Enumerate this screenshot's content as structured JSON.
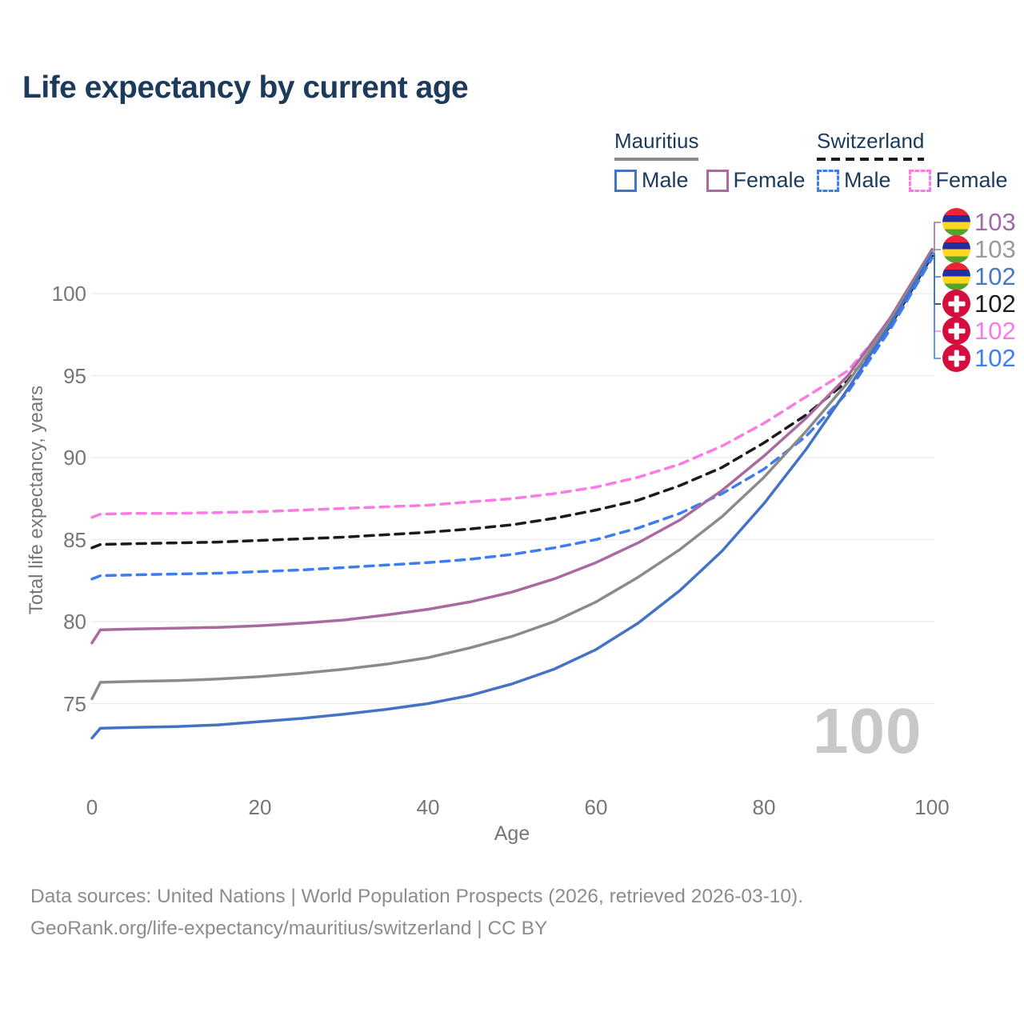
{
  "title": "Life expectancy by current age",
  "colors": {
    "title_navy": "#1b3a5c",
    "axis_text": "#767676",
    "gridline": "#ebebeb",
    "watermark": "#c8c8c8",
    "footer_text": "#8c8c8c"
  },
  "legend": {
    "groups": [
      {
        "name": "Mauritius",
        "underline_style": "solid",
        "underline_color": "#8a8a8a",
        "items": [
          {
            "label": "Male",
            "color": "#4472c4",
            "dashed": false
          },
          {
            "label": "Female",
            "color": "#a96b9f",
            "dashed": false
          }
        ]
      },
      {
        "name": "Switzerland",
        "underline_style": "dashed",
        "underline_color": "#1b1b1b",
        "items": [
          {
            "label": "Male",
            "color": "#3e7df1",
            "dashed": true
          },
          {
            "label": "Female",
            "color": "#fb7ae3",
            "dashed": true
          }
        ]
      }
    ]
  },
  "chart_data": {
    "type": "line",
    "title": "Life expectancy by current age",
    "xlabel": "Age",
    "ylabel": "Total life expectancy, years",
    "x_ticks": [
      0,
      20,
      40,
      60,
      80,
      100
    ],
    "y_ticks": [
      100,
      95,
      90,
      85,
      80,
      75
    ],
    "xlim": [
      0,
      100
    ],
    "ylim": [
      72,
      103.5
    ],
    "grid": "horizontal",
    "x": [
      0,
      1,
      5,
      10,
      15,
      20,
      25,
      30,
      35,
      40,
      45,
      50,
      55,
      60,
      65,
      70,
      75,
      80,
      85,
      90,
      95,
      100
    ],
    "series": [
      {
        "name": "Switzerland Female",
        "country": "Switzerland",
        "sex": "Female",
        "color": "#fb7ae3",
        "dash": "dashed",
        "end_label": "102",
        "end_row": 4,
        "values": [
          86.35,
          86.55,
          86.6,
          86.6,
          86.65,
          86.7,
          86.8,
          86.9,
          87.0,
          87.1,
          87.3,
          87.5,
          87.8,
          88.2,
          88.8,
          89.6,
          90.7,
          92.1,
          93.7,
          95.3,
          98.3,
          102.4
        ]
      },
      {
        "name": "Switzerland Overall",
        "country": "Switzerland",
        "sex": "Both",
        "color": "#1b1b1b",
        "dash": "dashed",
        "end_label": "102",
        "end_row": 3,
        "values": [
          84.5,
          84.7,
          84.75,
          84.8,
          84.85,
          84.95,
          85.05,
          85.15,
          85.3,
          85.45,
          85.65,
          85.9,
          86.3,
          86.8,
          87.4,
          88.3,
          89.4,
          90.9,
          92.6,
          94.7,
          98.0,
          102.3
        ]
      },
      {
        "name": "Switzerland Male",
        "country": "Switzerland",
        "sex": "Male",
        "color": "#3e7df1",
        "dash": "dashed",
        "end_label": "102",
        "end_row": 5,
        "values": [
          82.6,
          82.8,
          82.85,
          82.9,
          82.95,
          83.05,
          83.15,
          83.3,
          83.45,
          83.6,
          83.8,
          84.1,
          84.5,
          85.0,
          85.7,
          86.6,
          87.8,
          89.3,
          91.3,
          94.0,
          97.8,
          102.15
        ]
      },
      {
        "name": "Mauritius Female",
        "country": "Mauritius",
        "sex": "Female",
        "color": "#a96b9f",
        "dash": "solid",
        "end_label": "103",
        "end_row": 0,
        "values": [
          78.7,
          79.5,
          79.55,
          79.6,
          79.65,
          79.75,
          79.9,
          80.1,
          80.4,
          80.75,
          81.2,
          81.8,
          82.6,
          83.6,
          84.8,
          86.2,
          88.0,
          90.1,
          92.4,
          95.0,
          98.5,
          102.7
        ]
      },
      {
        "name": "Mauritius Overall",
        "country": "Mauritius",
        "sex": "Both",
        "color": "#8b8b8b",
        "dash": "solid",
        "end_label": "103",
        "end_row": 1,
        "values": [
          75.3,
          76.3,
          76.35,
          76.4,
          76.5,
          76.65,
          76.85,
          77.1,
          77.4,
          77.8,
          78.4,
          79.1,
          80.0,
          81.2,
          82.7,
          84.4,
          86.4,
          88.8,
          91.6,
          94.6,
          98.3,
          102.55
        ]
      },
      {
        "name": "Mauritius Male",
        "country": "Mauritius",
        "sex": "Male",
        "color": "#4472c4",
        "dash": "solid",
        "end_label": "102",
        "end_row": 2,
        "values": [
          72.9,
          73.5,
          73.55,
          73.6,
          73.7,
          73.9,
          74.1,
          74.35,
          74.65,
          75.0,
          75.5,
          76.2,
          77.1,
          78.3,
          79.9,
          81.9,
          84.3,
          87.2,
          90.5,
          94.2,
          98.1,
          102.45
        ]
      }
    ]
  },
  "end_labels": [
    {
      "value": "103",
      "flag": "mauritius",
      "color": "#a06ba6"
    },
    {
      "value": "103",
      "flag": "mauritius",
      "color": "#9a9a9a"
    },
    {
      "value": "102",
      "flag": "mauritius",
      "color": "#4677c8"
    },
    {
      "value": "102",
      "flag": "switzerland",
      "color": "#1c1c1c"
    },
    {
      "value": "102",
      "flag": "switzerland",
      "color": "#f87ae8"
    },
    {
      "value": "102",
      "flag": "switzerland",
      "color": "#3f7df2"
    }
  ],
  "watermark": "100",
  "footer": {
    "line1": "Data sources: United Nations | World Population Prospects (2026, retrieved 2026-03-10).",
    "line2": "GeoRank.org/life-expectancy/mauritius/switzerland | CC BY"
  }
}
